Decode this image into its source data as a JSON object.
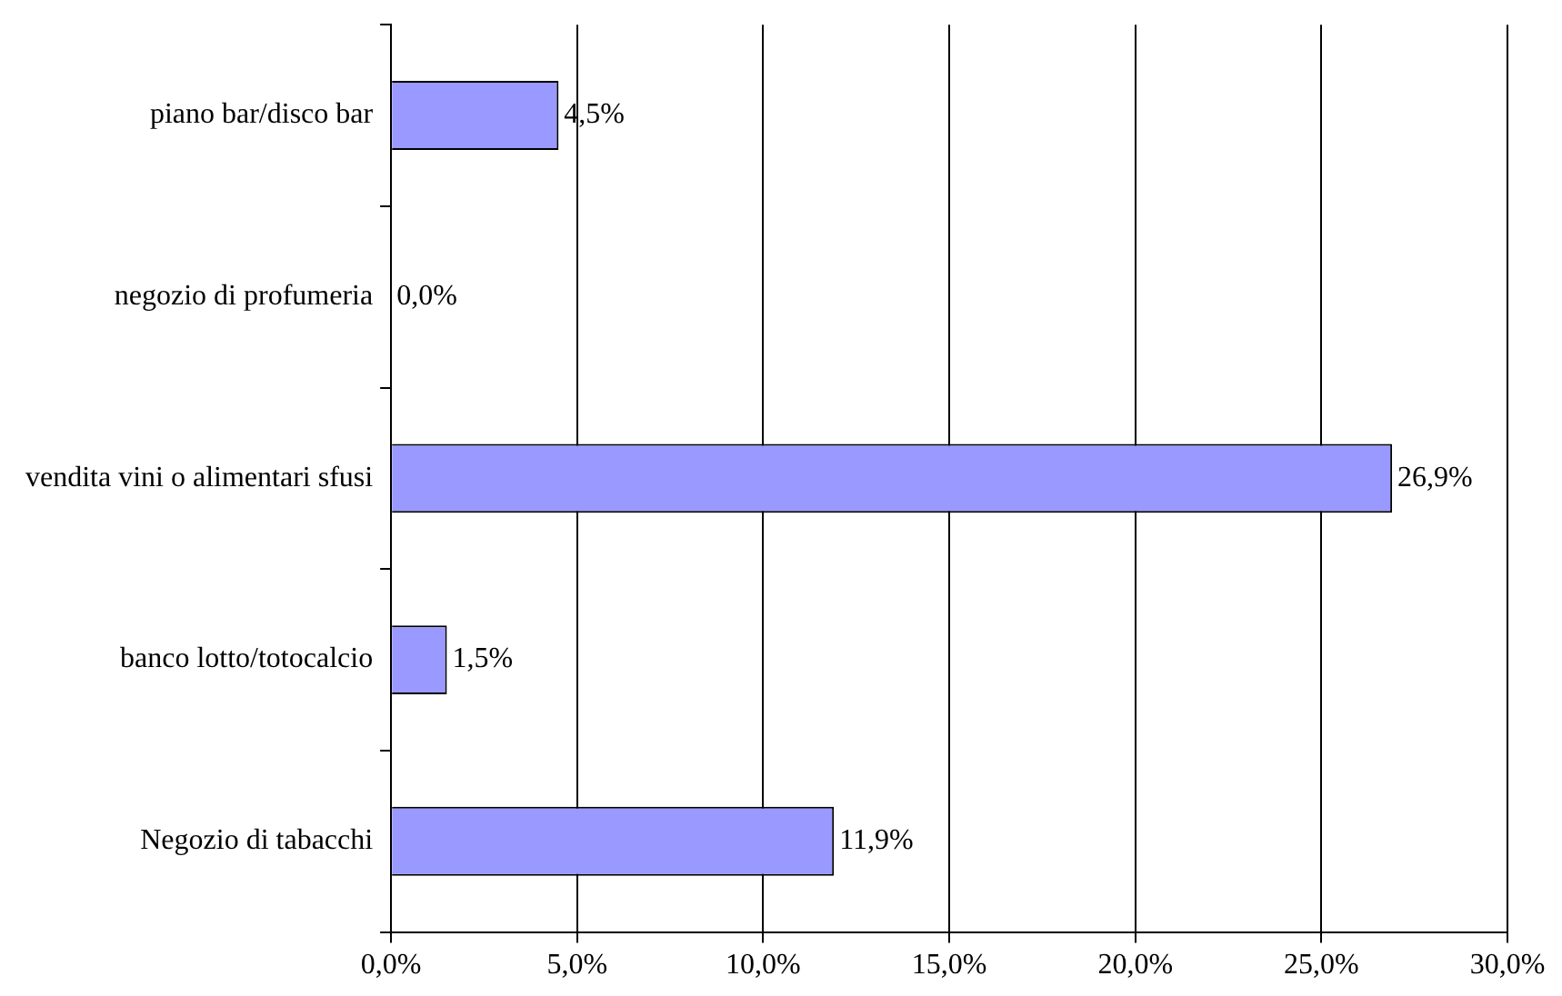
{
  "chart_data": {
    "type": "bar",
    "orientation": "horizontal",
    "categories": [
      "piano bar/disco bar",
      "negozio di profumeria",
      "vendita vini o alimentari sfusi",
      "banco lotto/totocalcio",
      "Negozio di tabacchi"
    ],
    "values": [
      4.5,
      0.0,
      26.9,
      1.5,
      11.9
    ],
    "value_labels": [
      "4,5%",
      "0,0%",
      "26,9%",
      "1,5%",
      "11,9%"
    ],
    "color": "#9999ff",
    "xlim": [
      0,
      30
    ],
    "xticks": [
      {
        "value": 0,
        "label": "0,0%"
      },
      {
        "value": 5,
        "label": "5,0%"
      },
      {
        "value": 10,
        "label": "10,0%"
      },
      {
        "value": 15,
        "label": "15,0%"
      },
      {
        "value": 20,
        "label": "20,0%"
      },
      {
        "value": 25,
        "label": "25,0%"
      },
      {
        "value": 30,
        "label": "30,0%"
      }
    ],
    "grid": "x",
    "legend": false
  }
}
